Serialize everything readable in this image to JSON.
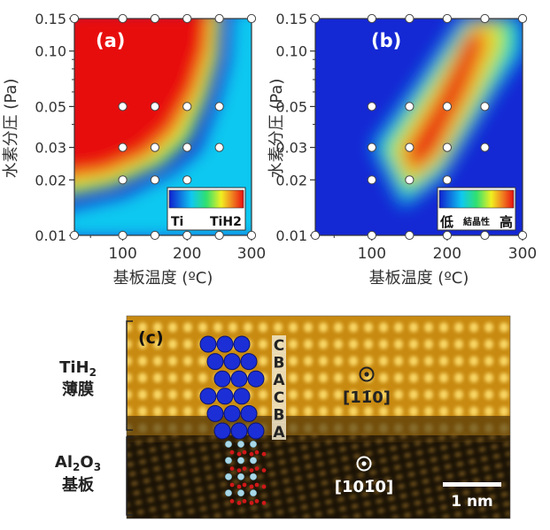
{
  "chart_data": [
    {
      "type": "heatmap",
      "panel_label": "(a)",
      "ylabel": "水素分圧 (Pa)",
      "xlabel": "基板温度 (ºC)",
      "xlim": [
        25,
        300
      ],
      "ylim": [
        0.01,
        0.15
      ],
      "yscale": "log",
      "x_ticks": [
        "100",
        "200",
        "300"
      ],
      "x_tick_values": [
        100,
        200,
        300
      ],
      "y_ticks": [
        "0.01",
        "0.02",
        "0.03",
        "0.05",
        "0.10",
        "0.15"
      ],
      "y_tick_values": [
        0.01,
        0.02,
        0.03,
        0.05,
        0.1,
        0.15
      ],
      "colorbar_low": "Ti",
      "colorbar_high": "TiH2",
      "points": [
        [
          25,
          0.15
        ],
        [
          100,
          0.15
        ],
        [
          150,
          0.15
        ],
        [
          200,
          0.15
        ],
        [
          250,
          0.15
        ],
        [
          300,
          0.15
        ],
        [
          100,
          0.05
        ],
        [
          150,
          0.05
        ],
        [
          200,
          0.05
        ],
        [
          250,
          0.05
        ],
        [
          100,
          0.03
        ],
        [
          150,
          0.03
        ],
        [
          200,
          0.03
        ],
        [
          250,
          0.03
        ],
        [
          100,
          0.02
        ],
        [
          150,
          0.02
        ],
        [
          200,
          0.02
        ],
        [
          25,
          0.01
        ],
        [
          100,
          0.01
        ],
        [
          150,
          0.01
        ],
        [
          200,
          0.01
        ],
        [
          250,
          0.01
        ],
        [
          300,
          0.01
        ]
      ]
    },
    {
      "type": "heatmap",
      "panel_label": "(b)",
      "ylabel": "水素分圧 (Pa)",
      "xlabel": "基板温度 (ºC)",
      "xlim": [
        25,
        300
      ],
      "ylim": [
        0.01,
        0.15
      ],
      "yscale": "log",
      "x_ticks": [
        "100",
        "200",
        "300"
      ],
      "x_tick_values": [
        100,
        200,
        300
      ],
      "y_ticks": [
        "0.01",
        "0.02",
        "0.03",
        "0.05",
        "0.10",
        "0.15"
      ],
      "y_tick_values": [
        0.01,
        0.02,
        0.03,
        0.05,
        0.1,
        0.15
      ],
      "colorbar_low": "低",
      "colorbar_mid": "結晶性",
      "colorbar_high": "高",
      "points": [
        [
          25,
          0.15
        ],
        [
          100,
          0.15
        ],
        [
          150,
          0.15
        ],
        [
          200,
          0.15
        ],
        [
          250,
          0.15
        ],
        [
          300,
          0.15
        ],
        [
          100,
          0.05
        ],
        [
          150,
          0.05
        ],
        [
          200,
          0.05
        ],
        [
          250,
          0.05
        ],
        [
          100,
          0.03
        ],
        [
          150,
          0.03
        ],
        [
          200,
          0.03
        ],
        [
          250,
          0.03
        ],
        [
          100,
          0.02
        ],
        [
          150,
          0.02
        ],
        [
          200,
          0.02
        ],
        [
          25,
          0.01
        ],
        [
          100,
          0.01
        ],
        [
          150,
          0.01
        ],
        [
          200,
          0.01
        ],
        [
          250,
          0.01
        ],
        [
          300,
          0.01
        ]
      ]
    }
  ],
  "panel_c": {
    "panel_label": "(c)",
    "film_label_line1": "TiH",
    "film_label_sub": "2",
    "film_label_line2": "薄膜",
    "substrate_al": "Al",
    "substrate_sub1": "2",
    "substrate_o": "O",
    "substrate_sub2": "3",
    "substrate_label_line2": "基板",
    "stacking": [
      "C",
      "B",
      "A",
      "C",
      "B",
      "A"
    ],
    "direction_top": "[11̄0]",
    "direction_bottom": "[101̄0]",
    "scale_bar": "1 nm",
    "colors": {
      "ti_atom": "#1c2fd6",
      "o_atom": "#d01818",
      "al_atom": "#a8d8e8"
    }
  }
}
